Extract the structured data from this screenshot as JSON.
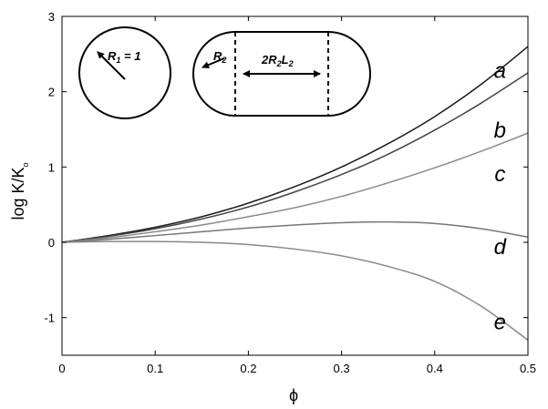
{
  "chart_data": {
    "type": "line",
    "title": "",
    "xlabel": "ϕ",
    "ylabel": "log K/K",
    "ylabel_sub": "o",
    "xlim": [
      0,
      0.5
    ],
    "ylim": [
      -1.5,
      3
    ],
    "xticks": [
      0,
      0.1,
      0.2,
      0.3,
      0.4,
      0.5
    ],
    "yticks": [
      -1,
      0,
      1,
      2,
      3
    ],
    "grid": false,
    "series": [
      {
        "name": "a",
        "color": "#1a1a1a",
        "x": [
          0,
          0.05,
          0.1,
          0.15,
          0.2,
          0.25,
          0.3,
          0.35,
          0.4,
          0.45,
          0.5
        ],
        "y": [
          0,
          0.09,
          0.2,
          0.34,
          0.52,
          0.74,
          1.0,
          1.31,
          1.67,
          2.1,
          2.6
        ]
      },
      {
        "name": "b",
        "color": "#444444",
        "x": [
          0,
          0.05,
          0.1,
          0.15,
          0.2,
          0.25,
          0.3,
          0.35,
          0.4,
          0.45,
          0.5
        ],
        "y": [
          0,
          0.08,
          0.18,
          0.31,
          0.47,
          0.67,
          0.9,
          1.17,
          1.49,
          1.85,
          2.25
        ]
      },
      {
        "name": "c",
        "color": "#8a8a8a",
        "x": [
          0,
          0.05,
          0.1,
          0.15,
          0.2,
          0.25,
          0.3,
          0.35,
          0.4,
          0.45,
          0.5
        ],
        "y": [
          0,
          0.06,
          0.14,
          0.23,
          0.34,
          0.46,
          0.61,
          0.79,
          0.99,
          1.21,
          1.45
        ]
      },
      {
        "name": "d",
        "color": "#777777",
        "x": [
          0,
          0.05,
          0.1,
          0.15,
          0.2,
          0.25,
          0.3,
          0.35,
          0.4,
          0.45,
          0.5
        ],
        "y": [
          0,
          0.04,
          0.09,
          0.14,
          0.19,
          0.23,
          0.26,
          0.27,
          0.25,
          0.18,
          0.07
        ]
      },
      {
        "name": "e",
        "color": "#888888",
        "x": [
          0,
          0.05,
          0.1,
          0.15,
          0.2,
          0.25,
          0.3,
          0.35,
          0.4,
          0.45,
          0.5
        ],
        "y": [
          0,
          0.01,
          0.01,
          0.0,
          -0.03,
          -0.09,
          -0.18,
          -0.32,
          -0.52,
          -0.85,
          -1.3
        ]
      }
    ],
    "curve_labels": [
      {
        "text": "a",
        "x": 0.47,
        "y": 2.28
      },
      {
        "text": "b",
        "x": 0.47,
        "y": 1.49
      },
      {
        "text": "c",
        "x": 0.47,
        "y": 0.91
      },
      {
        "text": "d",
        "x": 0.47,
        "y": -0.06
      },
      {
        "text": "e",
        "x": 0.47,
        "y": -1.06
      }
    ],
    "inset": {
      "circle_label": "R",
      "circle_label_sub": "1",
      "circle_label_suffix": " = 1",
      "capsule_label_r": "R",
      "capsule_label_r_sub": "2",
      "capsule_label_len_prefix": "2R",
      "capsule_label_len_sub1": "2",
      "capsule_label_len_mid": "L",
      "capsule_label_len_sub2": "2"
    }
  }
}
